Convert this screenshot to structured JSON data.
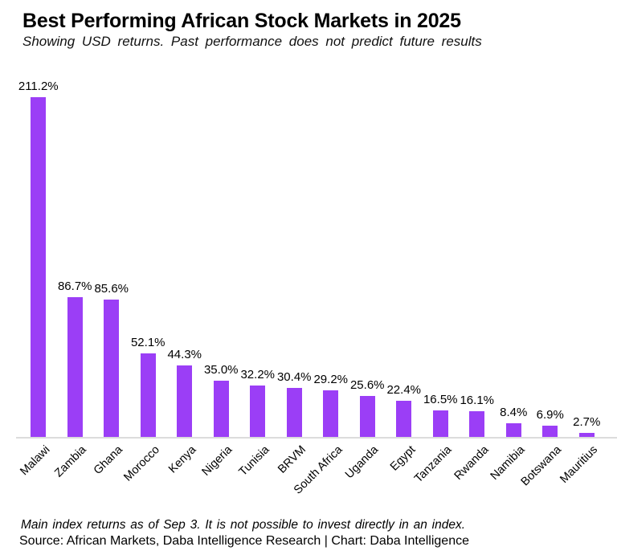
{
  "title": "Best Performing African Stock Markets in 2025",
  "subtitle": "Showing USD returns. Past performance does not predict future results",
  "chart_data": {
    "type": "bar",
    "title": "Best Performing African Stock Markets in 2025",
    "subtitle": "Showing USD returns. Past performance does not predict future results",
    "categories": [
      "Malawi",
      "Zambia",
      "Ghana",
      "Morocco",
      "Kenya",
      "Nigeria",
      "Tunisia",
      "BRVM",
      "South Africa",
      "Uganda",
      "Egypt",
      "Tanzania",
      "Rwanda",
      "Namibia",
      "Botswana",
      "Mauritius"
    ],
    "values": [
      211.2,
      86.7,
      85.6,
      52.1,
      44.3,
      35.0,
      32.2,
      30.4,
      29.2,
      25.6,
      22.4,
      16.5,
      16.1,
      8.4,
      6.9,
      2.7
    ],
    "value_labels": [
      "211.2%",
      "86.7%",
      "85.6%",
      "52.1%",
      "44.3%",
      "35.0%",
      "32.2%",
      "30.4%",
      "29.2%",
      "25.6%",
      "22.4%",
      "16.5%",
      "16.1%",
      "8.4%",
      "6.9%",
      "2.7%"
    ],
    "xlabel": "",
    "ylabel": "",
    "ylim": [
      0,
      220
    ],
    "grid": false,
    "legend": "none",
    "data_labels": true,
    "x_tick_rotation_deg": 45,
    "bar_color": "#9B3EF6",
    "axis_line_color": "#DCDCDC",
    "label_color": "#000000"
  },
  "footer": {
    "note": "Main index returns as of Sep 3. It is not possible to invest directly in an index.",
    "source": "Source: African Markets, Daba Intelligence Research | Chart: Daba Intelligence"
  }
}
